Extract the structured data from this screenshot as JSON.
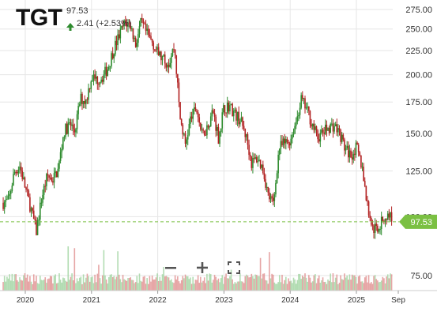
{
  "header": {
    "symbol": "TGT",
    "price": "97.53",
    "change": "2.41 (+2.53%)"
  },
  "controls": {
    "zoom_out_icon": "minus-icon",
    "zoom_in_icon": "plus-icon",
    "fullscreen_icon": "fullscreen-icon"
  },
  "colors": {
    "up": "#2e8b2e",
    "down": "#b22222",
    "price_tag": "#7bc043",
    "last_line": "#7bc043",
    "grid": "#e6e6e6"
  },
  "chart_data": {
    "type": "candlestick",
    "title": "TGT",
    "y_scale": "log",
    "ylim": [
      70,
      285
    ],
    "y_ticks": [
      "75.00",
      "100.00",
      "125.00",
      "150.00",
      "175.00",
      "200.00",
      "225.00",
      "250.00",
      "275.00"
    ],
    "x_ticks": [
      "2020",
      "2021",
      "2022",
      "2023",
      "2024",
      "2025",
      "Sep"
    ],
    "last_price": "97.53",
    "series": [
      {
        "name": "price",
        "x": [
          "2019-09",
          "2019-10",
          "2019-11",
          "2019-12",
          "2020-01",
          "2020-02",
          "2020-03",
          "2020-04",
          "2020-05",
          "2020-06",
          "2020-07",
          "2020-08",
          "2020-09",
          "2020-10",
          "2020-11",
          "2020-12",
          "2021-01",
          "2021-02",
          "2021-03",
          "2021-04",
          "2021-05",
          "2021-06",
          "2021-07",
          "2021-08",
          "2021-09",
          "2021-10",
          "2021-11",
          "2021-12",
          "2022-01",
          "2022-02",
          "2022-03",
          "2022-04",
          "2022-05",
          "2022-06",
          "2022-07",
          "2022-08",
          "2022-09",
          "2022-10",
          "2022-11",
          "2022-12",
          "2023-01",
          "2023-02",
          "2023-03",
          "2023-04",
          "2023-05",
          "2023-06",
          "2023-07",
          "2023-08",
          "2023-09",
          "2023-10",
          "2023-11",
          "2023-12",
          "2024-01",
          "2024-02",
          "2024-03",
          "2024-04",
          "2024-05",
          "2024-06",
          "2024-07",
          "2024-08",
          "2024-09",
          "2024-10",
          "2024-11",
          "2024-12",
          "2025-01",
          "2025-02",
          "2025-03",
          "2025-04",
          "2025-05",
          "2025-06",
          "2025-07",
          "2025-08"
        ],
        "close": [
          107,
          108,
          124,
          128,
          115,
          104,
          93,
          110,
          122,
          120,
          126,
          151,
          157,
          152,
          178,
          176,
          198,
          195,
          198,
          207,
          226,
          242,
          257,
          256,
          232,
          258,
          244,
          235,
          222,
          215,
          212,
          230,
          163,
          142,
          162,
          170,
          149,
          155,
          168,
          147,
          170,
          172,
          165,
          160,
          148,
          130,
          133,
          127,
          111,
          106,
          140,
          143,
          145,
          158,
          177,
          169,
          157,
          147,
          151,
          155,
          156,
          150,
          139,
          135,
          140,
          128,
          105,
          94,
          95,
          99,
          101,
          97.53
        ]
      }
    ]
  }
}
